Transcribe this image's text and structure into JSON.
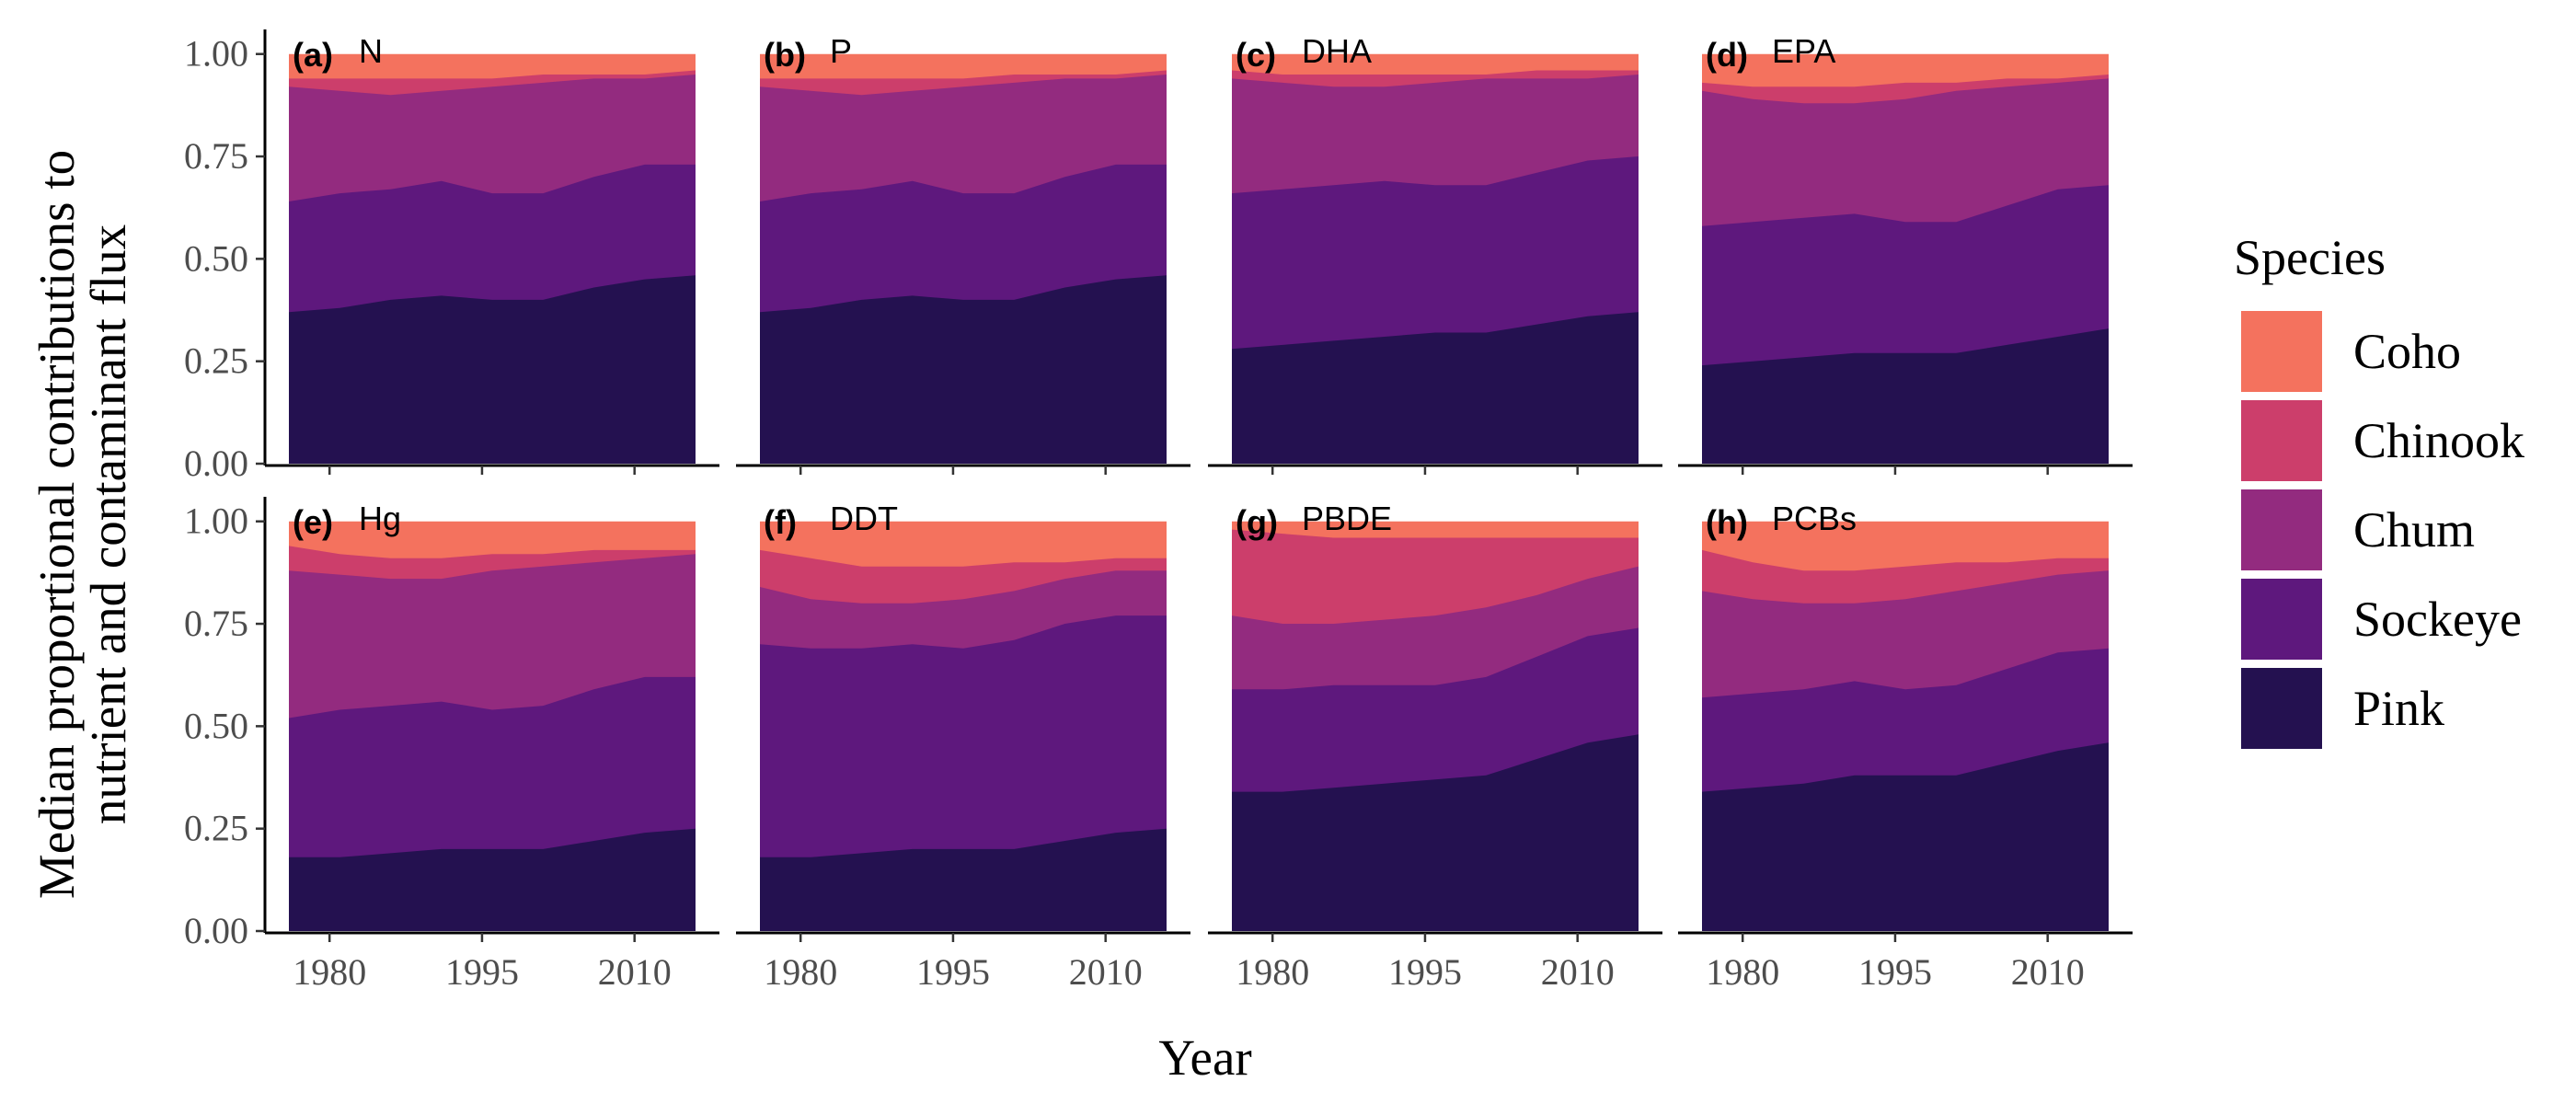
{
  "chart_data": {
    "type": "area",
    "stacked": true,
    "normalized": true,
    "xlabel": "Year",
    "ylabel_lines": [
      "Median proportional contributions to",
      "nutrient and contaminant flux"
    ],
    "x": [
      1976,
      1981,
      1986,
      1991,
      1996,
      2001,
      2006,
      2011,
      2016
    ],
    "xlim": [
      1976,
      2016
    ],
    "x_ticks": [
      1980,
      1995,
      2010
    ],
    "ylim": [
      0,
      1.06
    ],
    "y_ticks": [
      0.0,
      0.25,
      0.5,
      0.75,
      1.0
    ],
    "y_tick_labels": [
      "0.00",
      "0.25",
      "0.50",
      "0.75",
      "1.00"
    ],
    "stack_order": [
      "Pink",
      "Sockeye",
      "Chum",
      "Chinook",
      "Coho"
    ],
    "legend": {
      "title": "Species",
      "position": "right",
      "entries": [
        {
          "name": "Coho",
          "color": "#f4725e"
        },
        {
          "name": "Chinook",
          "color": "#cc3e6b"
        },
        {
          "name": "Chum",
          "color": "#932b7f"
        },
        {
          "name": "Sockeye",
          "color": "#5e187d"
        },
        {
          "name": "Pink",
          "color": "#241150"
        }
      ]
    },
    "panels": [
      {
        "tag": "(a)",
        "name": "N",
        "cumulative": {
          "Pink": [
            0.37,
            0.38,
            0.4,
            0.41,
            0.4,
            0.4,
            0.43,
            0.45,
            0.46
          ],
          "Sockeye": [
            0.64,
            0.66,
            0.67,
            0.69,
            0.66,
            0.66,
            0.7,
            0.73,
            0.73
          ],
          "Chum": [
            0.92,
            0.91,
            0.9,
            0.91,
            0.92,
            0.93,
            0.94,
            0.94,
            0.95
          ],
          "Chinook": [
            0.94,
            0.94,
            0.94,
            0.94,
            0.94,
            0.95,
            0.95,
            0.95,
            0.96
          ]
        }
      },
      {
        "tag": "(b)",
        "name": "P",
        "cumulative": {
          "Pink": [
            0.37,
            0.38,
            0.4,
            0.41,
            0.4,
            0.4,
            0.43,
            0.45,
            0.46
          ],
          "Sockeye": [
            0.64,
            0.66,
            0.67,
            0.69,
            0.66,
            0.66,
            0.7,
            0.73,
            0.73
          ],
          "Chum": [
            0.92,
            0.91,
            0.9,
            0.91,
            0.92,
            0.93,
            0.94,
            0.94,
            0.95
          ],
          "Chinook": [
            0.94,
            0.94,
            0.94,
            0.94,
            0.94,
            0.95,
            0.95,
            0.95,
            0.96
          ]
        }
      },
      {
        "tag": "(c)",
        "name": "DHA",
        "cumulative": {
          "Pink": [
            0.28,
            0.29,
            0.3,
            0.31,
            0.32,
            0.32,
            0.34,
            0.36,
            0.37
          ],
          "Sockeye": [
            0.66,
            0.67,
            0.68,
            0.69,
            0.68,
            0.68,
            0.71,
            0.74,
            0.75
          ],
          "Chum": [
            0.94,
            0.93,
            0.92,
            0.92,
            0.93,
            0.94,
            0.94,
            0.94,
            0.95
          ],
          "Chinook": [
            0.96,
            0.95,
            0.95,
            0.95,
            0.95,
            0.95,
            0.96,
            0.96,
            0.96
          ]
        }
      },
      {
        "tag": "(d)",
        "name": "EPA",
        "cumulative": {
          "Pink": [
            0.24,
            0.25,
            0.26,
            0.27,
            0.27,
            0.27,
            0.29,
            0.31,
            0.33
          ],
          "Sockeye": [
            0.58,
            0.59,
            0.6,
            0.61,
            0.59,
            0.59,
            0.63,
            0.67,
            0.68
          ],
          "Chum": [
            0.91,
            0.89,
            0.88,
            0.88,
            0.89,
            0.91,
            0.92,
            0.93,
            0.94
          ],
          "Chinook": [
            0.93,
            0.92,
            0.92,
            0.92,
            0.93,
            0.93,
            0.94,
            0.94,
            0.95
          ]
        }
      },
      {
        "tag": "(e)",
        "name": "Hg",
        "cumulative": {
          "Pink": [
            0.18,
            0.18,
            0.19,
            0.2,
            0.2,
            0.2,
            0.22,
            0.24,
            0.25
          ],
          "Sockeye": [
            0.52,
            0.54,
            0.55,
            0.56,
            0.54,
            0.55,
            0.59,
            0.62,
            0.62
          ],
          "Chum": [
            0.88,
            0.87,
            0.86,
            0.86,
            0.88,
            0.89,
            0.9,
            0.91,
            0.92
          ],
          "Chinook": [
            0.94,
            0.92,
            0.91,
            0.91,
            0.92,
            0.92,
            0.93,
            0.93,
            0.93
          ]
        }
      },
      {
        "tag": "(f)",
        "name": "DDT",
        "cumulative": {
          "Pink": [
            0.18,
            0.18,
            0.19,
            0.2,
            0.2,
            0.2,
            0.22,
            0.24,
            0.25
          ],
          "Sockeye": [
            0.7,
            0.69,
            0.69,
            0.7,
            0.69,
            0.71,
            0.75,
            0.77,
            0.77
          ],
          "Chum": [
            0.84,
            0.81,
            0.8,
            0.8,
            0.81,
            0.83,
            0.86,
            0.88,
            0.88
          ],
          "Chinook": [
            0.93,
            0.91,
            0.89,
            0.89,
            0.89,
            0.9,
            0.9,
            0.91,
            0.91
          ]
        }
      },
      {
        "tag": "(g)",
        "name": "PBDE",
        "cumulative": {
          "Pink": [
            0.34,
            0.34,
            0.35,
            0.36,
            0.37,
            0.38,
            0.42,
            0.46,
            0.48
          ],
          "Sockeye": [
            0.59,
            0.59,
            0.6,
            0.6,
            0.6,
            0.62,
            0.67,
            0.72,
            0.74
          ],
          "Chum": [
            0.77,
            0.75,
            0.75,
            0.76,
            0.77,
            0.79,
            0.82,
            0.86,
            0.89
          ],
          "Chinook": [
            0.98,
            0.97,
            0.96,
            0.96,
            0.96,
            0.96,
            0.96,
            0.96,
            0.96
          ]
        }
      },
      {
        "tag": "(h)",
        "name": "PCBs",
        "cumulative": {
          "Pink": [
            0.34,
            0.35,
            0.36,
            0.38,
            0.38,
            0.38,
            0.41,
            0.44,
            0.46
          ],
          "Sockeye": [
            0.57,
            0.58,
            0.59,
            0.61,
            0.59,
            0.6,
            0.64,
            0.68,
            0.69
          ],
          "Chum": [
            0.83,
            0.81,
            0.8,
            0.8,
            0.81,
            0.83,
            0.85,
            0.87,
            0.88
          ],
          "Chinook": [
            0.93,
            0.9,
            0.88,
            0.88,
            0.89,
            0.9,
            0.9,
            0.91,
            0.91
          ]
        }
      }
    ]
  }
}
